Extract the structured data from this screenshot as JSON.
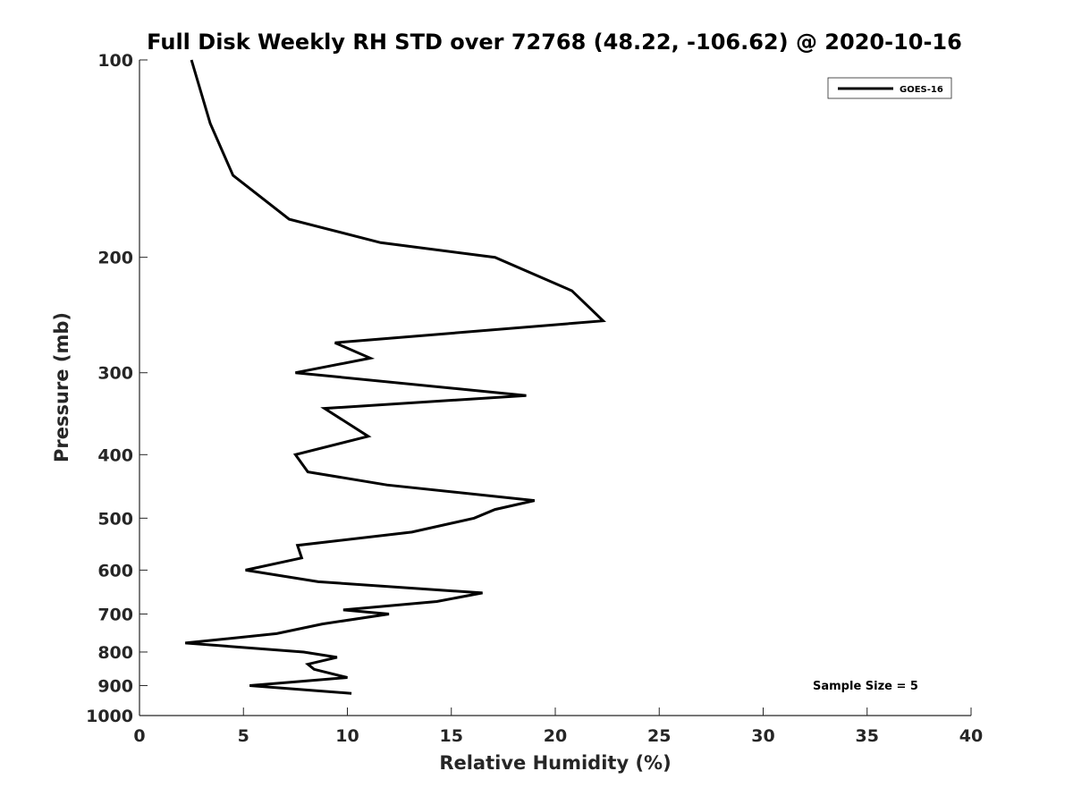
{
  "chart_data": {
    "type": "line",
    "title": "Full Disk Weekly RH STD over 72768 (48.22, -106.62) @ 2020-10-16",
    "xlabel": "Relative Humidity (%)",
    "ylabel": "Pressure (mb)",
    "xlim": [
      0,
      40
    ],
    "ylim": [
      100,
      1000
    ],
    "y_scale": "log",
    "y_reversed": true,
    "x_ticks": [
      "0",
      "5",
      "10",
      "15",
      "20",
      "25",
      "30",
      "35",
      "40"
    ],
    "y_ticks": [
      "100",
      "200",
      "300",
      "400",
      "500",
      "600",
      "700",
      "800",
      "900",
      "1000"
    ],
    "grid": false,
    "legend_position": "top-right",
    "series": [
      {
        "name": "GOES-16",
        "color": "#000000",
        "points": [
          [
            2.5,
            100
          ],
          [
            3.4,
            125
          ],
          [
            4.5,
            150
          ],
          [
            7.2,
            175
          ],
          [
            11.6,
            190
          ],
          [
            17.1,
            200
          ],
          [
            20.8,
            225
          ],
          [
            22.3,
            250
          ],
          [
            9.4,
            270
          ],
          [
            11.1,
            285
          ],
          [
            7.5,
            300
          ],
          [
            18.6,
            325
          ],
          [
            8.9,
            340
          ],
          [
            11.0,
            375
          ],
          [
            7.5,
            400
          ],
          [
            8.1,
            425
          ],
          [
            11.9,
            445
          ],
          [
            19.0,
            470
          ],
          [
            17.1,
            485
          ],
          [
            16.1,
            500
          ],
          [
            13.1,
            525
          ],
          [
            7.6,
            550
          ],
          [
            7.8,
            575
          ],
          [
            5.1,
            600
          ],
          [
            8.6,
            625
          ],
          [
            16.5,
            650
          ],
          [
            14.3,
            670
          ],
          [
            9.8,
            690
          ],
          [
            12.0,
            700
          ],
          [
            8.8,
            725
          ],
          [
            6.6,
            750
          ],
          [
            2.2,
            775
          ],
          [
            7.9,
            800
          ],
          [
            9.5,
            815
          ],
          [
            8.1,
            835
          ],
          [
            8.4,
            850
          ],
          [
            10.0,
            875
          ],
          [
            5.3,
            900
          ],
          [
            10.2,
            925
          ]
        ]
      }
    ],
    "annotation": "Sample Size = 5"
  }
}
